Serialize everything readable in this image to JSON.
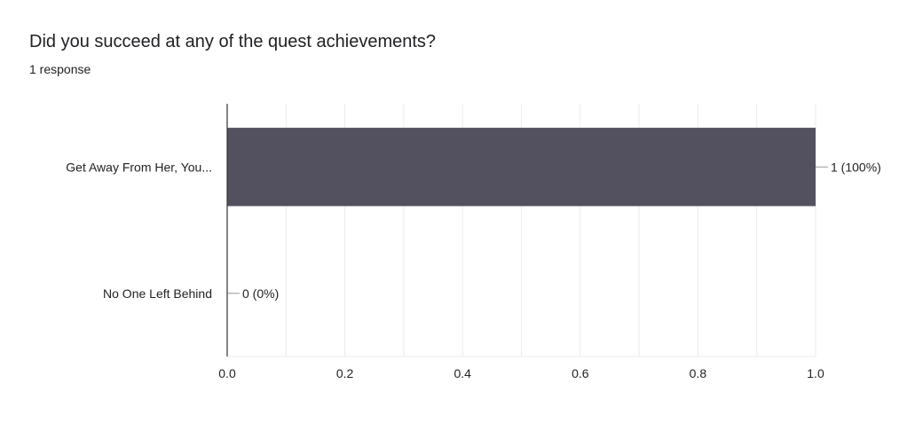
{
  "header": {
    "title": "Did you succeed at any of the quest achievements?",
    "subtitle": "1 response"
  },
  "chart_data": {
    "type": "bar",
    "orientation": "horizontal",
    "categories": [
      "Get Away From Her, You...",
      "No One Left Behind"
    ],
    "values": [
      1,
      0
    ],
    "data_labels": [
      "1 (100%)",
      "0 (0%)"
    ],
    "xlim": [
      0,
      1
    ],
    "x_ticks": [
      "0.0",
      "0.2",
      "0.4",
      "0.6",
      "0.8",
      "1.0"
    ],
    "grid": true,
    "bar_color": "#53515f"
  }
}
